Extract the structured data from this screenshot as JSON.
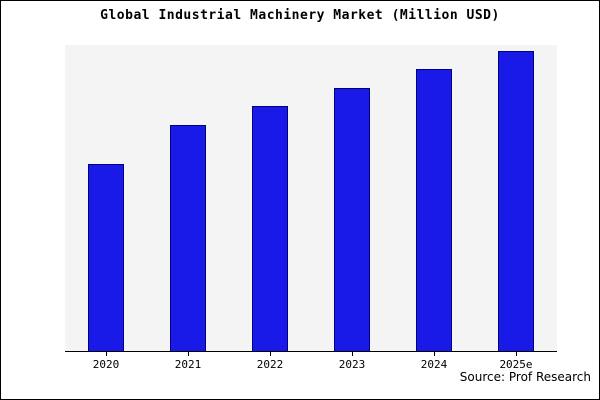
{
  "chart_data": {
    "type": "bar",
    "title": "Global Industrial Machinery Market (Million USD)",
    "categories": [
      "2020",
      "2021",
      "2022",
      "2023",
      "2024",
      "2025e"
    ],
    "values": [
      61,
      74,
      80,
      86,
      92,
      98
    ],
    "xlabel": "",
    "ylabel": "",
    "ylim": [
      0,
      100
    ],
    "grid": false,
    "legend": false,
    "colors": {
      "bar_fill": "#1a1ae8",
      "bar_border": "#000080",
      "plot_bg": "#f4f4f4"
    }
  },
  "source": "Source: Prof Research"
}
